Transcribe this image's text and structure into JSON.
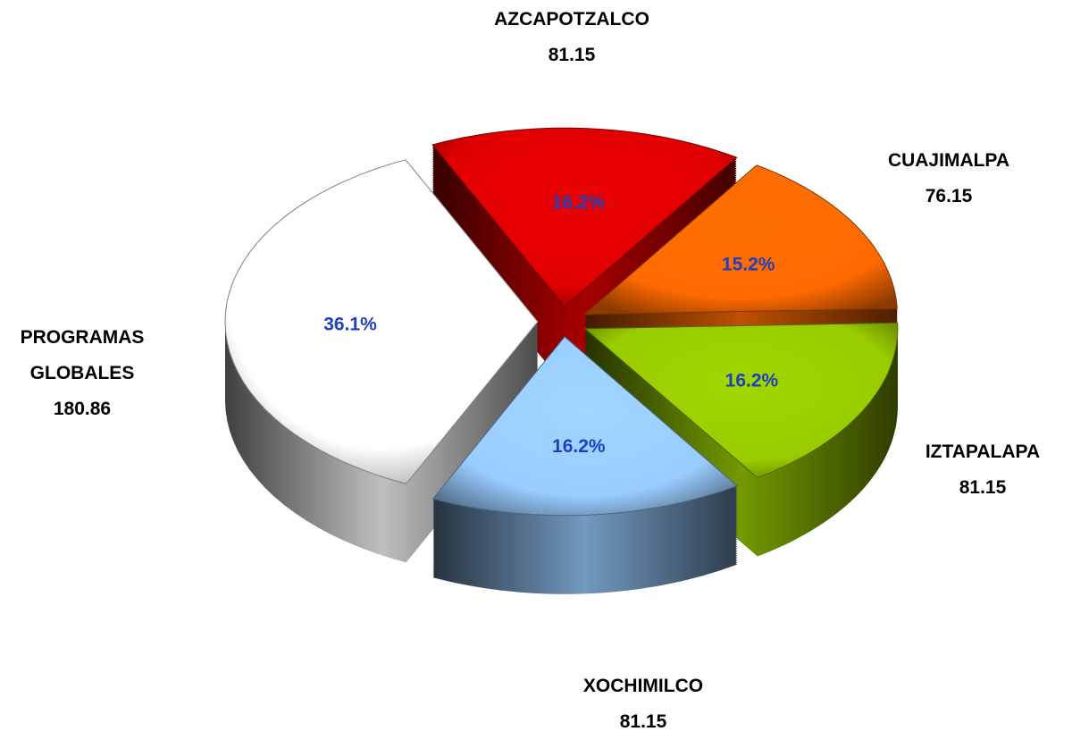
{
  "chart_data": {
    "type": "pie",
    "categories": [
      "AZCAPOTZALCO",
      "CUAJIMALPA",
      "IZTAPALAPA",
      "XOCHIMILCO",
      "PROGRAMAS GLOBALES"
    ],
    "values": [
      81.15,
      76.15,
      81.15,
      81.15,
      180.86
    ],
    "percent_labels": [
      "16.2%",
      "15.2%",
      "16.2%",
      "16.2%",
      "36.1%"
    ],
    "colors": [
      "#e00000",
      "#ff6a00",
      "#99cc00",
      "#99ccff",
      "#ffffff"
    ]
  }
}
